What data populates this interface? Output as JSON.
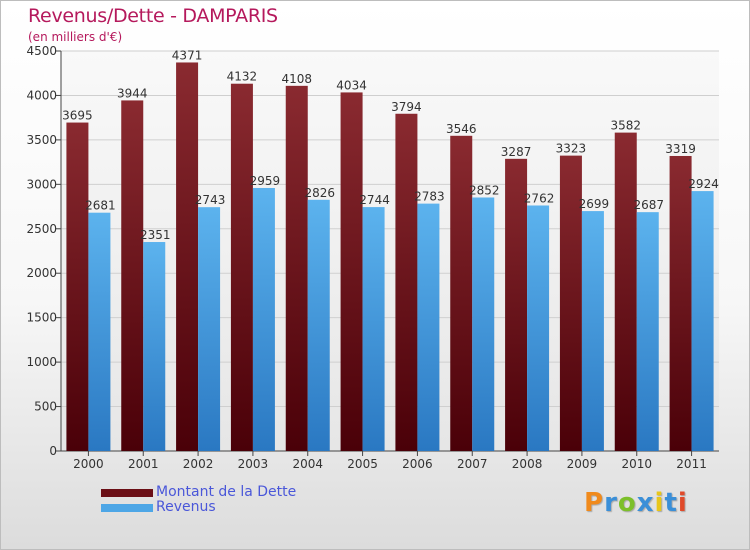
{
  "title": "Revenus/Dette - DAMPARIS",
  "subtitle": "(en milliers d'€)",
  "chart_data": {
    "type": "bar",
    "categories": [
      "2000",
      "2001",
      "2002",
      "2003",
      "2004",
      "2005",
      "2006",
      "2007",
      "2008",
      "2009",
      "2010",
      "2011"
    ],
    "series": [
      {
        "name": "Montant de la Dette",
        "color": "#7a1c24",
        "values": [
          3695,
          3944,
          4371,
          4132,
          4108,
          4034,
          3794,
          3546,
          3287,
          3323,
          3582,
          3319
        ]
      },
      {
        "name": "Revenus",
        "color": "#4da6e6",
        "values": [
          2681,
          2351,
          2743,
          2959,
          2826,
          2744,
          2783,
          2852,
          2762,
          2699,
          2687,
          2924
        ]
      }
    ],
    "ylim": [
      0,
      4500
    ],
    "yticks": [
      0,
      500,
      1000,
      1500,
      2000,
      2500,
      3000,
      3500,
      4000,
      4500
    ],
    "grid": true,
    "legend_placement": "bottom-left"
  },
  "legend": {
    "debt_label": "Montant de la Dette",
    "revenue_label": "Revenus",
    "debt_color": "#6b0f16",
    "revenue_color": "#4da6e6"
  },
  "logo": {
    "text": "Proxiti",
    "colors": [
      "#f08a1c",
      "#3a8fd8",
      "#7cbf2a",
      "#3a8fd8",
      "#e8c61a",
      "#3a8fd8",
      "#e04a2a"
    ]
  }
}
